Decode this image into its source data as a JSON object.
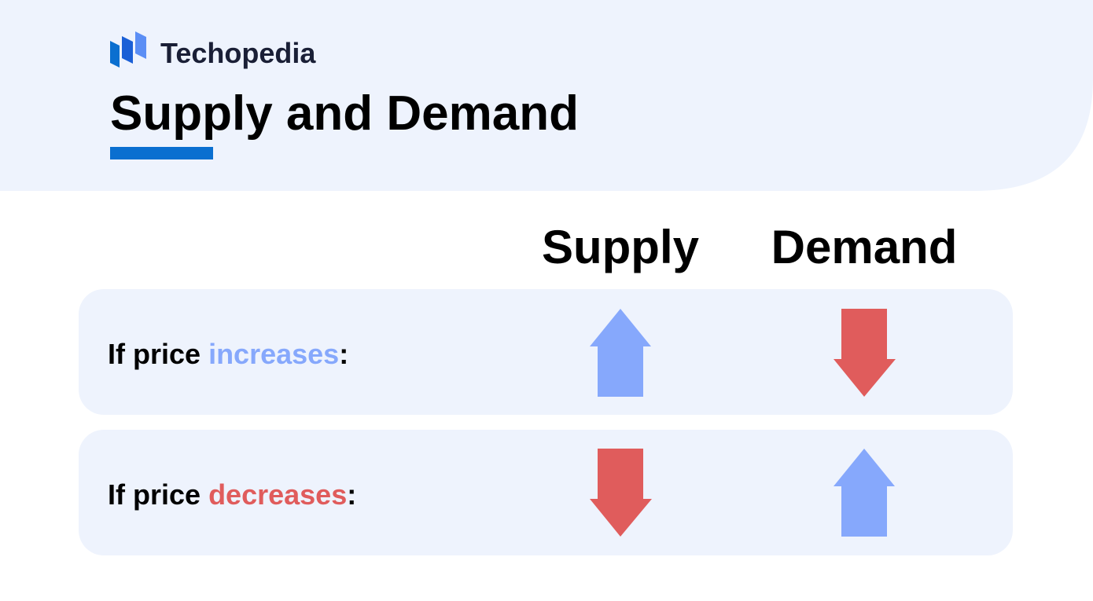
{
  "header": {
    "brand": "Techopedia",
    "title": "Supply and Demand"
  },
  "columns": [
    "Supply",
    "Demand"
  ],
  "rows": [
    {
      "prefix": "If price",
      "keyword": "increases",
      "suffix": ":"
    },
    {
      "prefix": "If price",
      "keyword": "decreases",
      "suffix": ":"
    }
  ]
}
